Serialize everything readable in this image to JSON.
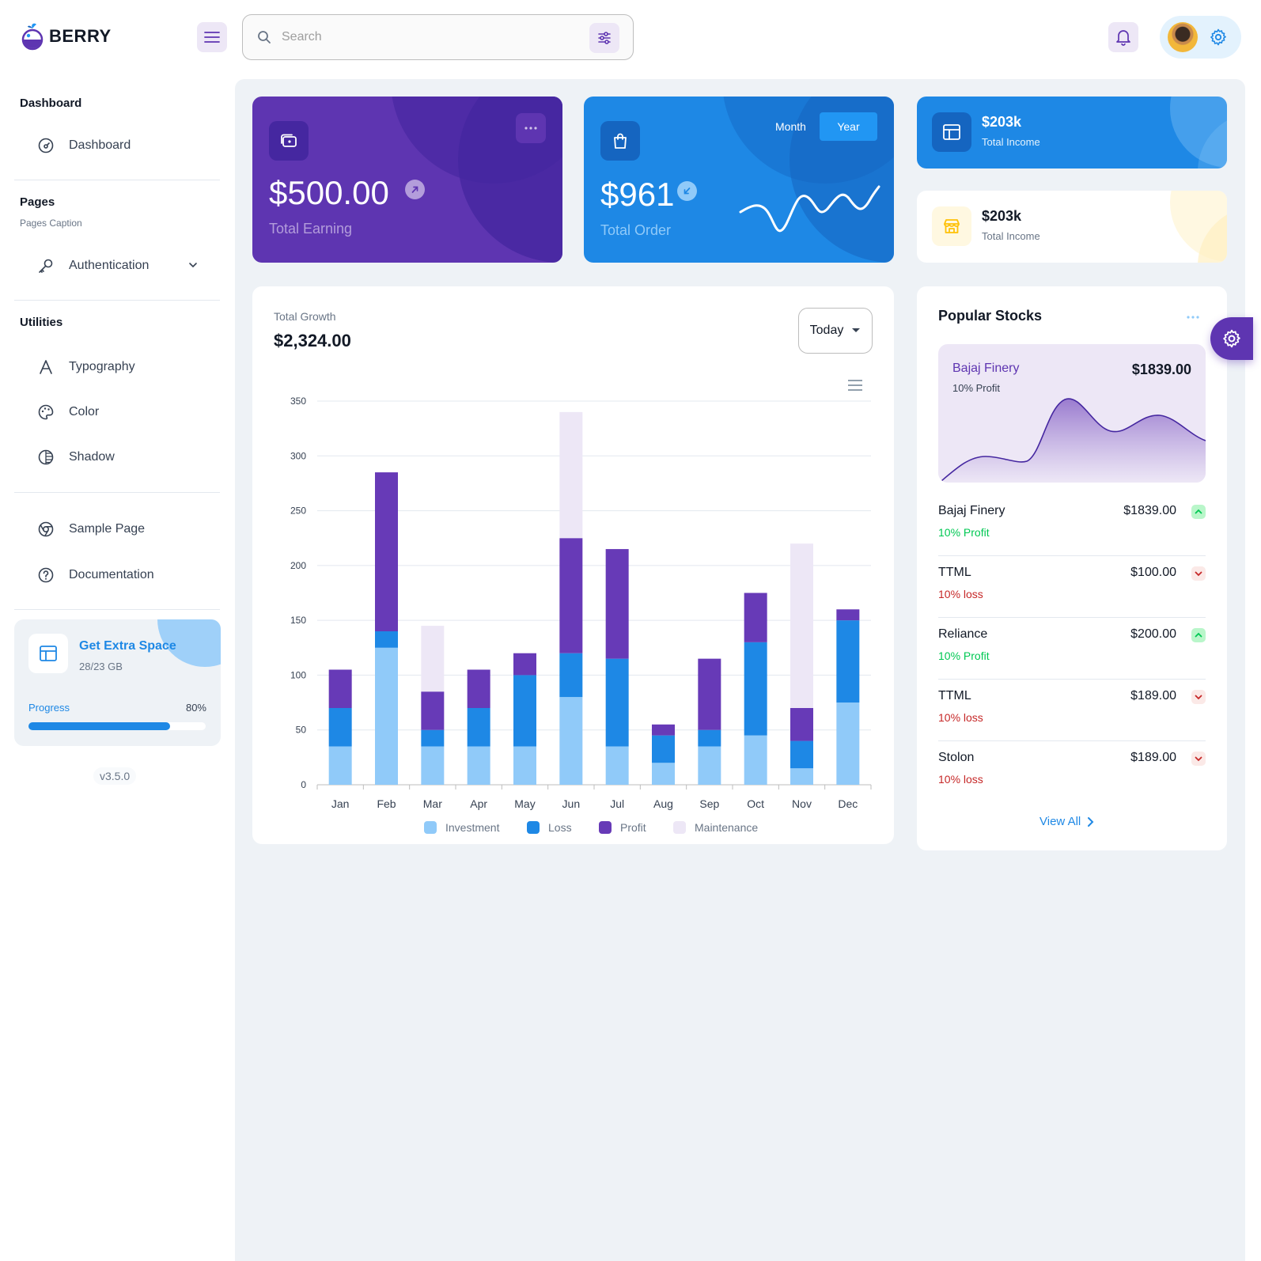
{
  "app": {
    "name": "BERRY"
  },
  "header": {
    "search_placeholder": "Search"
  },
  "sidebar": {
    "groups": [
      {
        "caption": "Dashboard",
        "items": [
          {
            "label": "Dashboard",
            "icon": "dashboard-icon"
          }
        ]
      },
      {
        "caption": "Pages",
        "sub": "Pages Caption",
        "items": [
          {
            "label": "Authentication",
            "icon": "key-icon"
          }
        ]
      },
      {
        "caption": "Utilities",
        "items": [
          {
            "label": "Typography",
            "icon": "typography-icon"
          },
          {
            "label": "Color",
            "icon": "palette-icon"
          },
          {
            "label": "Shadow",
            "icon": "shadow-icon"
          }
        ]
      },
      {
        "items": [
          {
            "label": "Sample Page",
            "icon": "chrome-icon"
          },
          {
            "label": "Documentation",
            "icon": "help-icon"
          }
        ]
      }
    ],
    "extra_space": {
      "title": "Get Extra Space",
      "sub": "28/23 GB",
      "progress_label": "Progress",
      "progress_value": "80%",
      "progress_fraction": 0.8
    },
    "version": "v3.5.0"
  },
  "cards": {
    "earning": {
      "value": "$500.00",
      "label": "Total Earning"
    },
    "order": {
      "value": "$961",
      "label": "Total Order",
      "toggle_month": "Month",
      "toggle_year": "Year"
    },
    "income_dark": {
      "value": "$203k",
      "label": "Total Income"
    },
    "income_light": {
      "value": "$203k",
      "label": "Total Income"
    }
  },
  "growth": {
    "label": "Total Growth",
    "value": "$2,324.00",
    "period": "Today"
  },
  "chart_data": {
    "type": "bar",
    "stacked": true,
    "categories": [
      "Jan",
      "Feb",
      "Mar",
      "Apr",
      "May",
      "Jun",
      "Jul",
      "Aug",
      "Sep",
      "Oct",
      "Nov",
      "Dec"
    ],
    "series": [
      {
        "name": "Investment",
        "color": "#90caf9",
        "values": [
          35,
          125,
          35,
          35,
          35,
          80,
          35,
          20,
          35,
          45,
          15,
          75
        ]
      },
      {
        "name": "Loss",
        "color": "#1e88e5",
        "values": [
          35,
          15,
          15,
          35,
          65,
          40,
          80,
          25,
          15,
          85,
          25,
          75
        ]
      },
      {
        "name": "Profit",
        "color": "#673ab7",
        "values": [
          35,
          145,
          35,
          35,
          20,
          105,
          100,
          10,
          65,
          45,
          30,
          10
        ]
      },
      {
        "name": "Maintenance",
        "color": "#ede7f6",
        "values": [
          0,
          0,
          60,
          0,
          0,
          115,
          0,
          0,
          0,
          0,
          150,
          0
        ]
      }
    ],
    "ylim": [
      0,
      350
    ],
    "yticks": [
      0,
      50,
      100,
      150,
      200,
      250,
      300,
      350
    ],
    "grid": true,
    "legend": "bottom"
  },
  "stocks": {
    "title": "Popular Stocks",
    "featured": {
      "name": "Bajaj Finery",
      "price": "$1839.00",
      "status": "10% Profit"
    },
    "rows": [
      {
        "name": "Bajaj Finery",
        "price": "$1839.00",
        "status": "10% Profit",
        "trend": "up"
      },
      {
        "name": "TTML",
        "price": "$100.00",
        "status": "10% loss",
        "trend": "down"
      },
      {
        "name": "Reliance",
        "price": "$200.00",
        "status": "10% Profit",
        "trend": "up"
      },
      {
        "name": "TTML",
        "price": "$189.00",
        "status": "10% loss",
        "trend": "down"
      },
      {
        "name": "Stolon",
        "price": "$189.00",
        "status": "10% loss",
        "trend": "down"
      }
    ],
    "view_all": "View All"
  },
  "colors": {
    "primary": "#5e35b1",
    "secondary": "#1e88e5",
    "success": "#00c853",
    "error": "#c62828"
  }
}
